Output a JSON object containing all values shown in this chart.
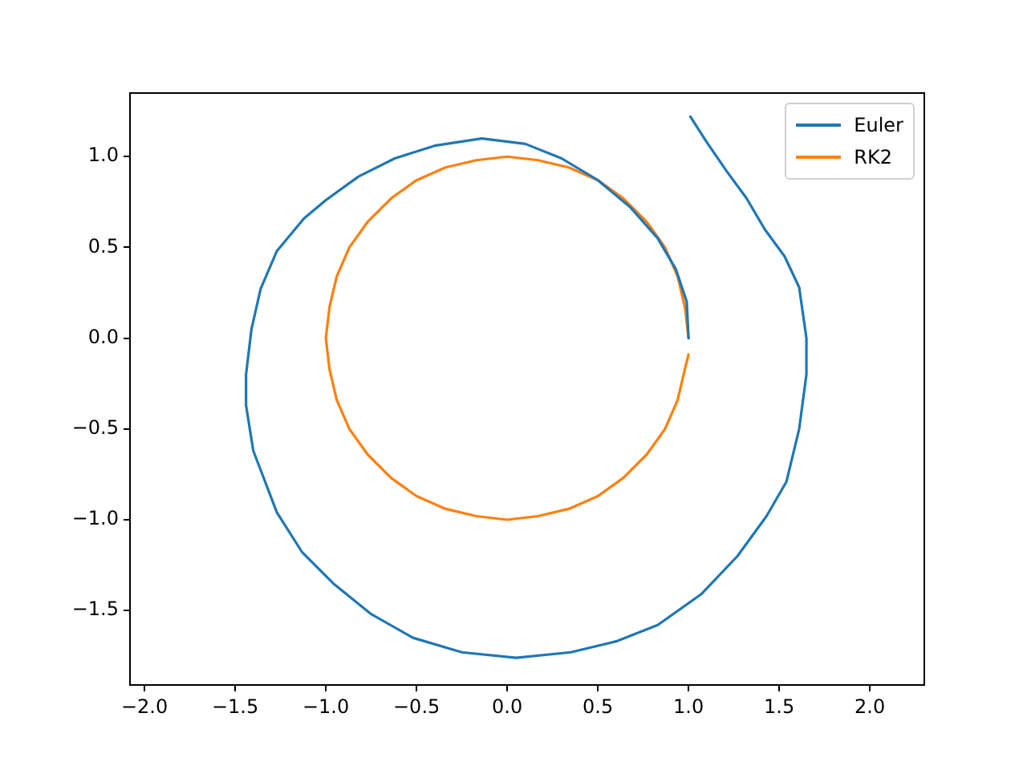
{
  "chart_data": {
    "type": "line",
    "marker": "none",
    "line_style": "solid",
    "grid": false,
    "legend": "top right",
    "xlim": [
      -2.08,
      2.3
    ],
    "ylim": [
      -1.91,
      1.35
    ],
    "xticks": [
      {
        "value": -2,
        "label": "−2.0"
      },
      {
        "value": -1.5,
        "label": "−1.5"
      },
      {
        "value": -1,
        "label": "−1.0"
      },
      {
        "value": -0.5,
        "label": "−0.5"
      },
      {
        "value": 0,
        "label": "0.0"
      },
      {
        "value": 0.5,
        "label": "0.5"
      },
      {
        "value": 1,
        "label": "1.0"
      },
      {
        "value": 1.5,
        "label": "1.5"
      },
      {
        "value": 2,
        "label": "2.0"
      }
    ],
    "yticks": [
      {
        "value": -1.5,
        "label": "−1.5"
      },
      {
        "value": -1,
        "label": "−1.0"
      },
      {
        "value": -0.5,
        "label": "−0.5"
      },
      {
        "value": 0,
        "label": "0.0"
      },
      {
        "value": 0.5,
        "label": "0.5"
      },
      {
        "value": 1,
        "label": "1.0"
      }
    ],
    "series": [
      {
        "name": "Euler",
        "color": "#1f77b4",
        "x": [
          1.0,
          0.99,
          0.93,
          0.83,
          0.68,
          0.5,
          0.3,
          0.1,
          -0.14,
          -0.4,
          -0.62,
          -0.82,
          -1.0,
          -1.12,
          -1.27,
          -1.36,
          -1.41,
          -1.44,
          -1.44,
          -1.4,
          -1.27,
          -1.13,
          -0.96,
          -0.75,
          -0.52,
          -0.25,
          0.05,
          0.35,
          0.6,
          0.83,
          1.07,
          1.27,
          1.43,
          1.54,
          1.61,
          1.65,
          1.65,
          1.61,
          1.53,
          1.42,
          1.32,
          1.21,
          1.1,
          1.01
        ],
        "values": [
          0.0,
          0.2,
          0.38,
          0.55,
          0.72,
          0.87,
          0.99,
          1.07,
          1.1,
          1.06,
          0.99,
          0.89,
          0.76,
          0.66,
          0.48,
          0.27,
          0.05,
          -0.2,
          -0.37,
          -0.62,
          -0.96,
          -1.18,
          -1.35,
          -1.52,
          -1.65,
          -1.73,
          -1.76,
          -1.73,
          -1.67,
          -1.58,
          -1.41,
          -1.2,
          -0.98,
          -0.79,
          -0.5,
          -0.2,
          0.0,
          0.28,
          0.45,
          0.6,
          0.77,
          0.92,
          1.08,
          1.22
        ]
      },
      {
        "name": "RK2",
        "color": "#ff7f0e",
        "x": [
          1,
          0.98,
          0.94,
          0.87,
          0.77,
          0.64,
          0.5,
          0.34,
          0.17,
          0,
          -0.17,
          -0.34,
          -0.5,
          -0.64,
          -0.77,
          -0.87,
          -0.94,
          -0.98,
          -1,
          -0.98,
          -0.94,
          -0.87,
          -0.77,
          -0.64,
          -0.5,
          -0.34,
          -0.17,
          0,
          0.17,
          0.34,
          0.5,
          0.64,
          0.77,
          0.87,
          0.94,
          0.98,
          1.0
        ],
        "values": [
          0,
          0.17,
          0.34,
          0.5,
          0.64,
          0.77,
          0.87,
          0.94,
          0.98,
          1,
          0.98,
          0.94,
          0.87,
          0.77,
          0.64,
          0.5,
          0.34,
          0.17,
          0,
          -0.17,
          -0.34,
          -0.5,
          -0.64,
          -0.77,
          -0.87,
          -0.94,
          -0.98,
          -1,
          -0.98,
          -0.94,
          -0.87,
          -0.77,
          -0.64,
          -0.5,
          -0.34,
          -0.17,
          -0.09
        ]
      }
    ]
  }
}
